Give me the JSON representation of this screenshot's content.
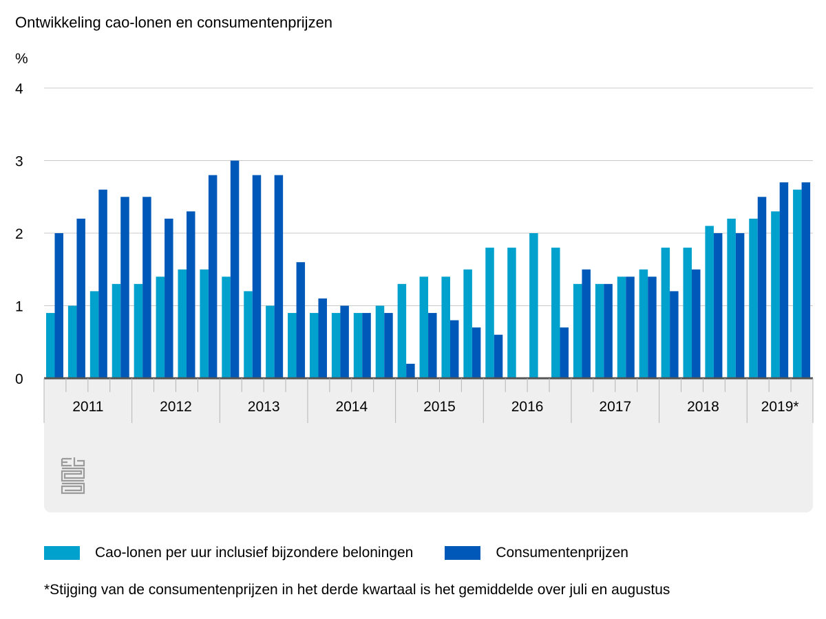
{
  "title": "Ontwikkeling cao-lonen en consumentenprijzen",
  "footnote": "*Stijging van de consumentenprijzen in het derde kwartaal is het gemiddelde over juli en augustus",
  "colors": {
    "cao": "#00a1cd",
    "cpi": "#0058b8",
    "grid": "#c8c8c8",
    "axis_band": "#efefef"
  },
  "chart_data": {
    "type": "bar",
    "ylabel": "%",
    "ylim": [
      0,
      4
    ],
    "yticks": [
      0,
      1,
      2,
      3,
      4
    ],
    "grid": true,
    "legend_position": "bottom",
    "years": [
      "2011",
      "2012",
      "2013",
      "2014",
      "2015",
      "2016",
      "2017",
      "2018",
      "2019*"
    ],
    "categories": [
      "2011 Q1",
      "2011 Q2",
      "2011 Q3",
      "2011 Q4",
      "2012 Q1",
      "2012 Q2",
      "2012 Q3",
      "2012 Q4",
      "2013 Q1",
      "2013 Q2",
      "2013 Q3",
      "2013 Q4",
      "2014 Q1",
      "2014 Q2",
      "2014 Q3",
      "2014 Q4",
      "2015 Q1",
      "2015 Q2",
      "2015 Q3",
      "2015 Q4",
      "2016 Q1",
      "2016 Q2",
      "2016 Q3",
      "2016 Q4",
      "2017 Q1",
      "2017 Q2",
      "2017 Q3",
      "2017 Q4",
      "2018 Q1",
      "2018 Q2",
      "2018 Q3",
      "2018 Q4",
      "2019 Q1",
      "2019 Q2",
      "2019 Q3"
    ],
    "series": [
      {
        "name": "Cao-lonen per uur inclusief bijzondere beloningen",
        "values": [
          0.9,
          1.0,
          1.2,
          1.3,
          1.3,
          1.4,
          1.5,
          1.5,
          1.4,
          1.2,
          1.0,
          0.9,
          0.9,
          0.9,
          0.9,
          1.0,
          1.3,
          1.4,
          1.4,
          1.5,
          1.8,
          1.8,
          2.0,
          1.8,
          1.3,
          1.3,
          1.4,
          1.5,
          1.8,
          1.8,
          2.1,
          2.2,
          2.2,
          2.3,
          2.6
        ]
      },
      {
        "name": "Consumentenprijzen",
        "values": [
          2.0,
          2.2,
          2.6,
          2.5,
          2.5,
          2.2,
          2.3,
          2.8,
          3.0,
          2.8,
          2.8,
          1.6,
          1.1,
          1.0,
          0.9,
          0.9,
          0.2,
          0.9,
          0.8,
          0.7,
          0.6,
          0.0,
          0.0,
          0.7,
          1.5,
          1.3,
          1.4,
          1.4,
          1.2,
          1.5,
          2.0,
          2.0,
          2.5,
          2.7,
          2.7
        ]
      }
    ]
  }
}
